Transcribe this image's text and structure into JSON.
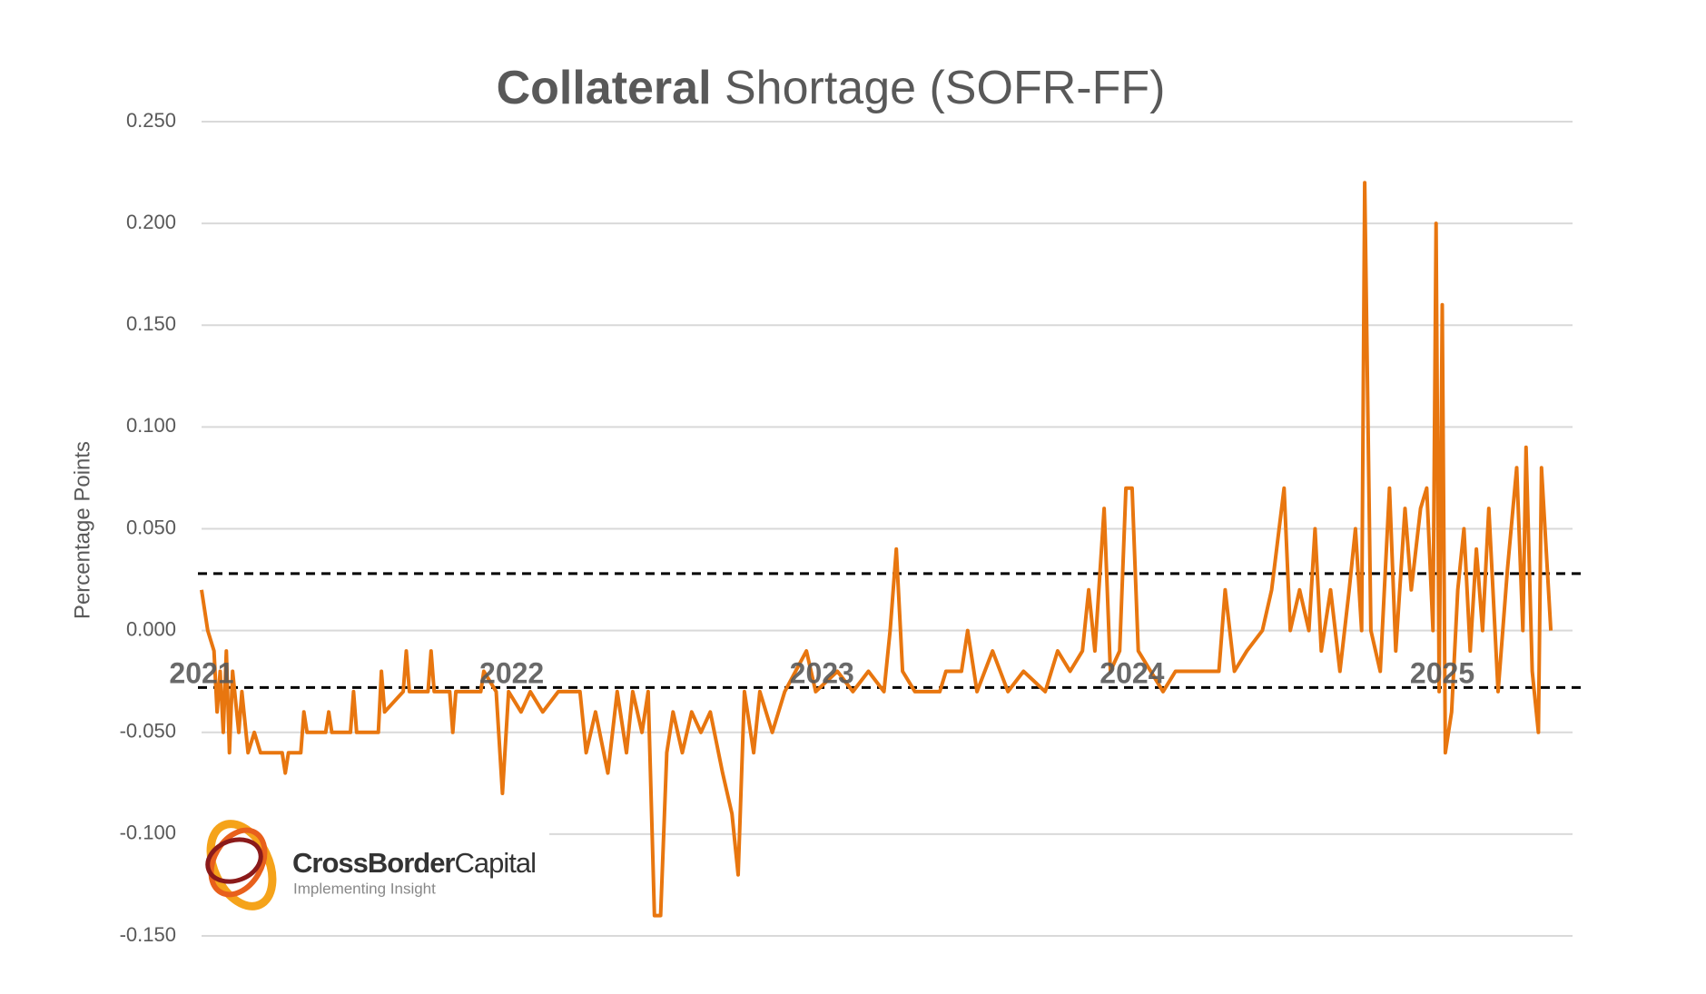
{
  "chart_data": {
    "type": "line",
    "title": {
      "bold": "Collateral",
      "regular": "Shortage (SOFR-FF)"
    },
    "y_label": "Percentage Points",
    "ylim": [
      -0.15,
      0.25
    ],
    "yticks": [
      {
        "value": 0.25,
        "label": "0.250"
      },
      {
        "value": 0.2,
        "label": "0.200"
      },
      {
        "value": 0.15,
        "label": "0.150"
      },
      {
        "value": 0.1,
        "label": "0.100"
      },
      {
        "value": 0.05,
        "label": "0.050"
      },
      {
        "value": 0,
        "label": "0.000"
      },
      {
        "value": -0.05,
        "label": "-0.050"
      },
      {
        "value": -0.1,
        "label": "-0.100"
      },
      {
        "value": -0.15,
        "label": "-0.150"
      }
    ],
    "xlim": [
      2021,
      2025.42
    ],
    "xticks": [
      2021,
      2022,
      2023,
      2024,
      2025
    ],
    "grid": true,
    "reference_lines": [
      0.028,
      -0.028
    ],
    "x": [
      2021.0,
      2021.01,
      2021.02,
      2021.04,
      2021.05,
      2021.06,
      2021.07,
      2021.08,
      2021.09,
      2021.1,
      2021.12,
      2021.13,
      2021.15,
      2021.17,
      2021.19,
      2021.26,
      2021.27,
      2021.28,
      2021.32,
      2021.33,
      2021.34,
      2021.4,
      2021.41,
      2021.42,
      2021.48,
      2021.49,
      2021.5,
      2021.57,
      2021.58,
      2021.59,
      2021.65,
      2021.66,
      2021.67,
      2021.73,
      2021.74,
      2021.75,
      2021.8,
      2021.81,
      2021.82,
      2021.9,
      2021.91,
      2021.95,
      2021.97,
      2021.99,
      2022.03,
      2022.06,
      2022.1,
      2022.15,
      2022.22,
      2022.24,
      2022.27,
      2022.31,
      2022.34,
      2022.37,
      2022.39,
      2022.42,
      2022.44,
      2022.46,
      2022.48,
      2022.5,
      2022.52,
      2022.55,
      2022.58,
      2022.61,
      2022.64,
      2022.68,
      2022.71,
      2022.73,
      2022.75,
      2022.78,
      2022.8,
      2022.84,
      2022.88,
      2022.95,
      2022.98,
      2023.05,
      2023.1,
      2023.15,
      2023.2,
      2023.22,
      2023.24,
      2023.26,
      2023.3,
      2023.38,
      2023.4,
      2023.45,
      2023.47,
      2023.5,
      2023.55,
      2023.6,
      2023.65,
      2023.72,
      2023.76,
      2023.8,
      2023.84,
      2023.86,
      2023.88,
      2023.91,
      2023.93,
      2023.96,
      2023.98,
      2024.0,
      2024.02,
      2024.06,
      2024.1,
      2024.14,
      2024.28,
      2024.3,
      2024.33,
      2024.37,
      2024.42,
      2024.45,
      2024.49,
      2024.51,
      2024.54,
      2024.57,
      2024.59,
      2024.61,
      2024.64,
      2024.67,
      2024.7,
      2024.72,
      2024.74,
      2024.75,
      2024.77,
      2024.8,
      2024.83,
      2024.85,
      2024.88,
      2024.9,
      2024.93,
      2024.95,
      2024.97,
      2024.98,
      2024.99,
      2025.0,
      2025.01,
      2025.03,
      2025.05,
      2025.07,
      2025.09,
      2025.11,
      2025.13,
      2025.15,
      2025.18,
      2025.21,
      2025.24,
      2025.26,
      2025.27,
      2025.29,
      2025.31,
      2025.32,
      2025.35
    ],
    "series": [
      {
        "name": "SOFR-FF",
        "color": "#e8760f",
        "values": [
          0.02,
          0.01,
          0.0,
          -0.01,
          -0.04,
          -0.02,
          -0.05,
          -0.01,
          -0.06,
          -0.02,
          -0.05,
          -0.03,
          -0.06,
          -0.05,
          -0.06,
          -0.06,
          -0.07,
          -0.06,
          -0.06,
          -0.04,
          -0.05,
          -0.05,
          -0.04,
          -0.05,
          -0.05,
          -0.03,
          -0.05,
          -0.05,
          -0.02,
          -0.04,
          -0.03,
          -0.01,
          -0.03,
          -0.03,
          -0.01,
          -0.03,
          -0.03,
          -0.05,
          -0.03,
          -0.03,
          -0.02,
          -0.03,
          -0.08,
          -0.03,
          -0.04,
          -0.03,
          -0.04,
          -0.03,
          -0.03,
          -0.06,
          -0.04,
          -0.07,
          -0.03,
          -0.06,
          -0.03,
          -0.05,
          -0.03,
          -0.14,
          -0.14,
          -0.06,
          -0.04,
          -0.06,
          -0.04,
          -0.05,
          -0.04,
          -0.07,
          -0.09,
          -0.12,
          -0.03,
          -0.06,
          -0.03,
          -0.05,
          -0.03,
          -0.01,
          -0.03,
          -0.02,
          -0.03,
          -0.02,
          -0.03,
          0.0,
          0.04,
          -0.02,
          -0.03,
          -0.03,
          -0.02,
          -0.02,
          0.0,
          -0.03,
          -0.01,
          -0.03,
          -0.02,
          -0.03,
          -0.01,
          -0.02,
          -0.01,
          0.02,
          -0.01,
          0.06,
          -0.02,
          -0.01,
          0.07,
          0.07,
          -0.01,
          -0.02,
          -0.03,
          -0.02,
          -0.02,
          0.02,
          -0.02,
          -0.01,
          0.0,
          0.02,
          0.07,
          0.0,
          0.02,
          0.0,
          0.05,
          -0.01,
          0.02,
          -0.02,
          0.02,
          0.05,
          0.0,
          0.22,
          0.0,
          -0.02,
          0.07,
          -0.01,
          0.06,
          0.02,
          0.06,
          0.07,
          0.0,
          0.2,
          -0.03,
          0.16,
          -0.06,
          -0.04,
          0.02,
          0.05,
          -0.01,
          0.04,
          0.0,
          0.06,
          -0.03,
          0.03,
          0.08,
          0.0,
          0.09,
          -0.02,
          -0.05,
          0.08,
          0.0
        ]
      }
    ]
  },
  "logo": {
    "name_bold": "CrossBorder",
    "name_regular": "Capital",
    "tagline": "Implementing Insight"
  }
}
